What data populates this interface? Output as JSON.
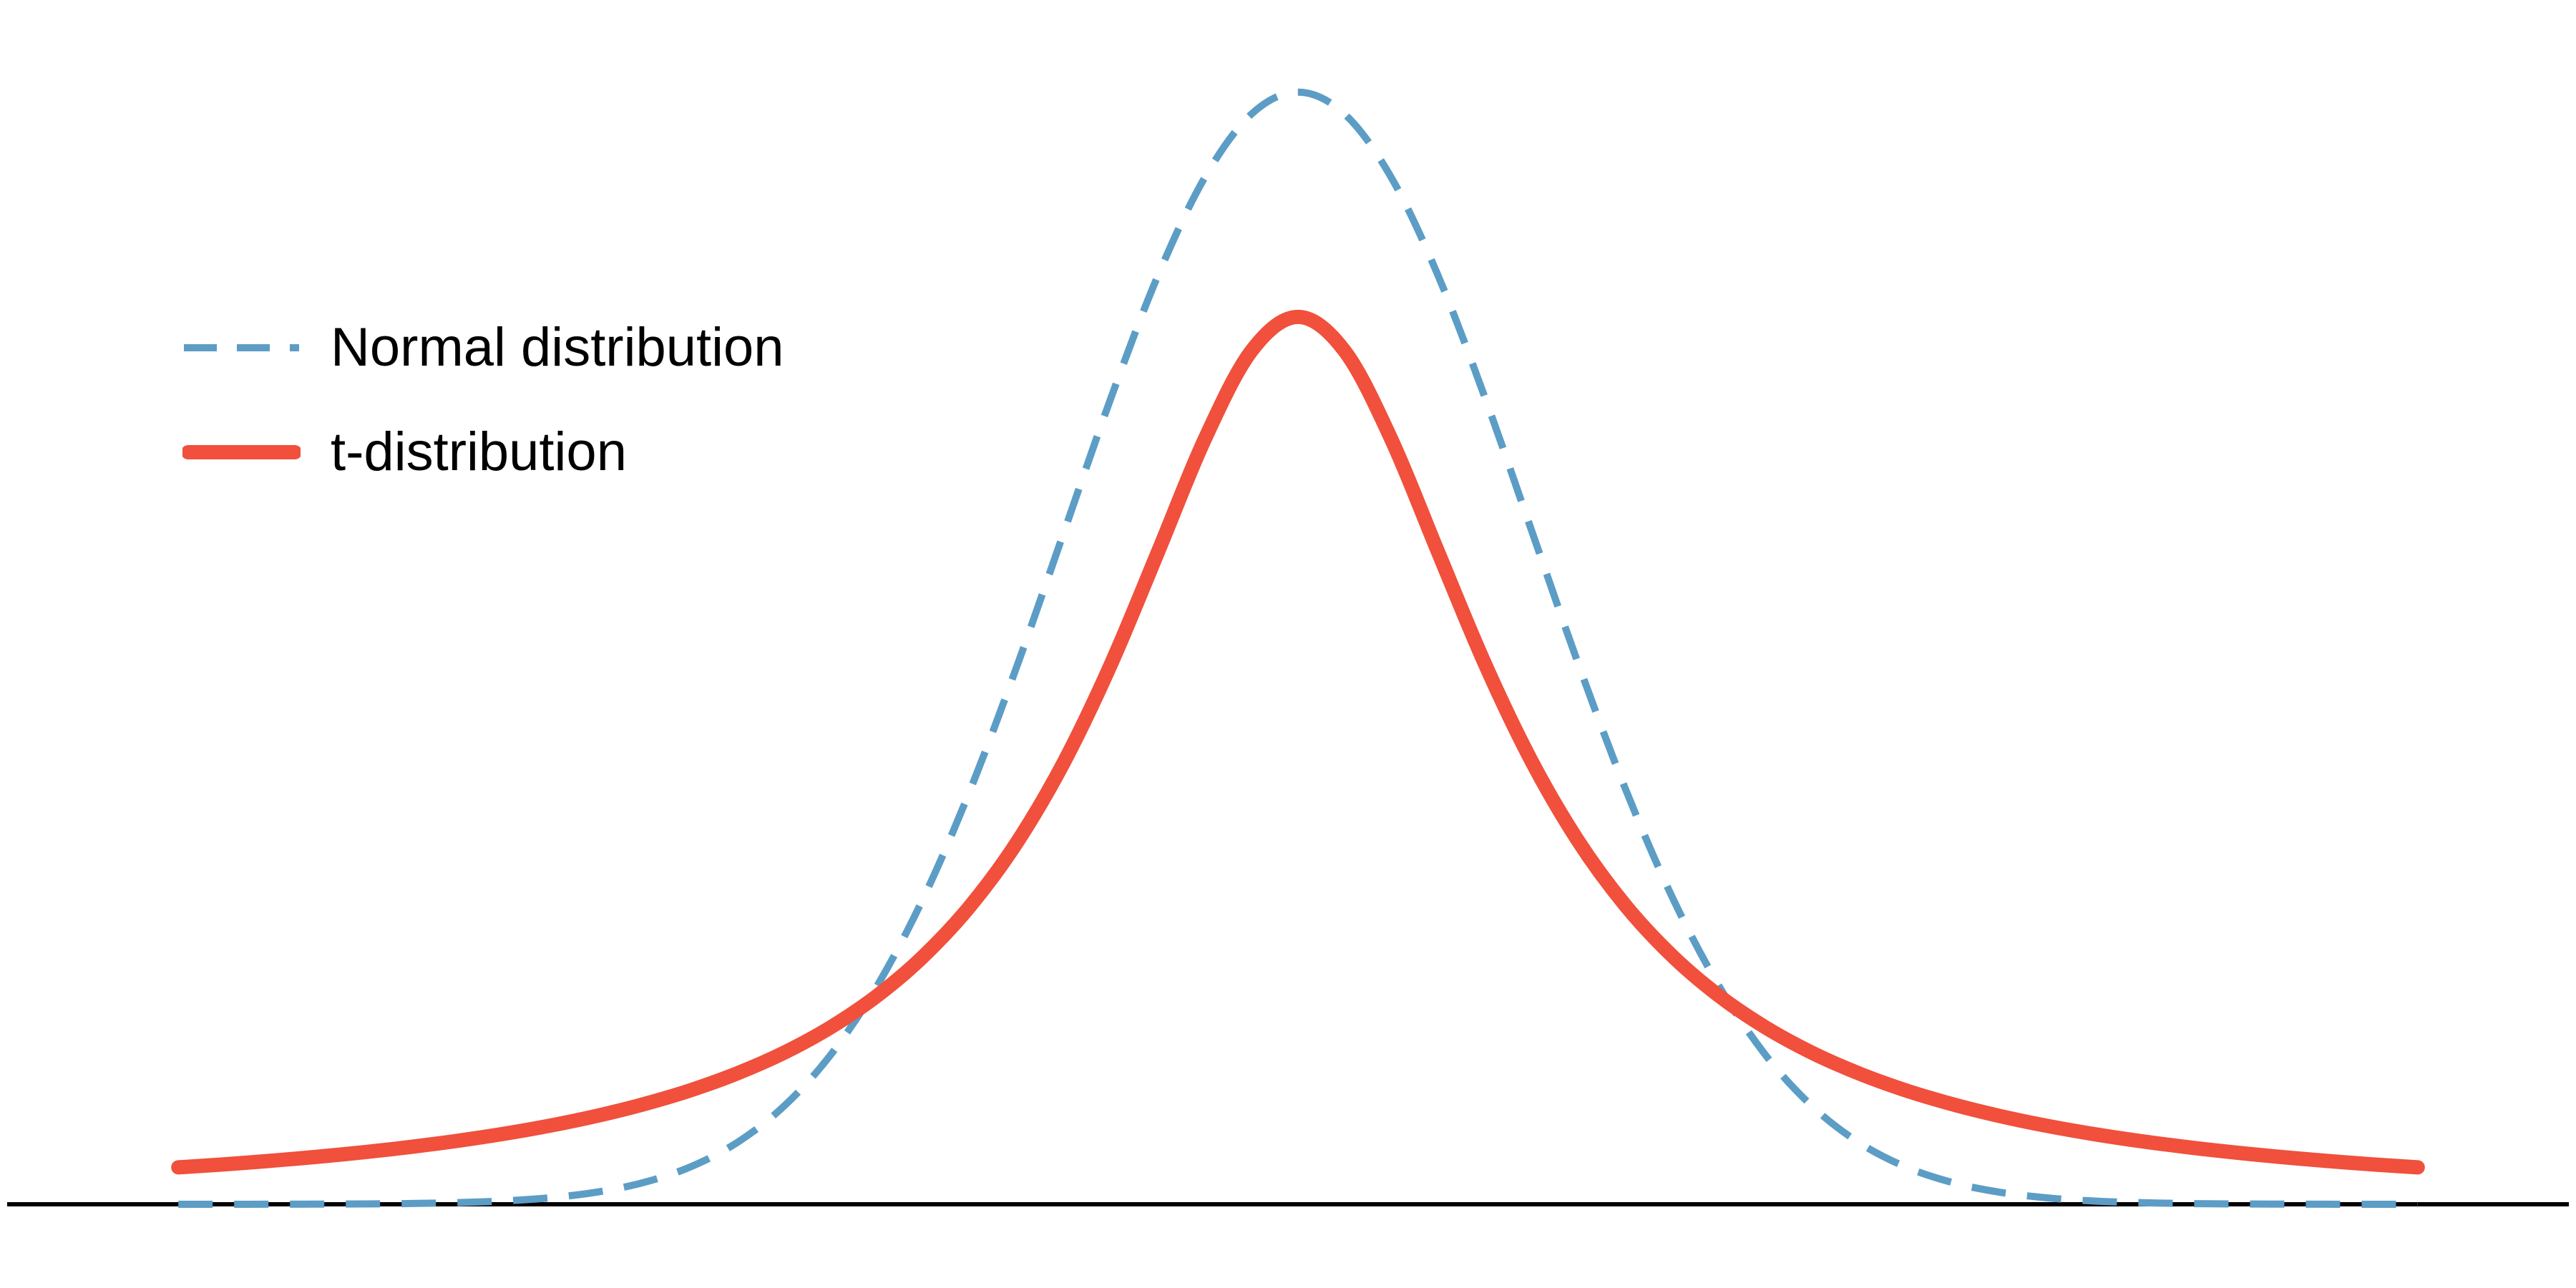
{
  "page": {
    "background": "#ffffff"
  },
  "chart_data": {
    "type": "line",
    "title": "",
    "xlabel": "",
    "ylabel": "",
    "grid": false,
    "axes": {
      "x_axis_line_visible": true,
      "x_axis_color": "#000000",
      "x_tick_labels": [],
      "y_axis_visible": false
    },
    "x_min": -4.8,
    "x_max": 4.8,
    "x_step": 0.2,
    "y_range": [
      0,
      0.44
    ],
    "legend_position": "top-left",
    "series": [
      {
        "name": "Normal distribution",
        "color": "#5C9DC6",
        "line_style": "dashed",
        "peak_value": 0.39894,
        "values": [
          4e-06,
          1e-05,
          2e-05,
          6e-05,
          0.00013,
          0.00029,
          0.00061,
          0.00123,
          0.00238,
          0.00443,
          0.00792,
          0.01358,
          0.02239,
          0.03547,
          0.05399,
          0.07895,
          0.11092,
          0.14973,
          0.19419,
          0.24197,
          0.28969,
          0.33322,
          0.36827,
          0.39104,
          0.39894,
          0.39104,
          0.36827,
          0.33322,
          0.28969,
          0.24197,
          0.19419,
          0.14973,
          0.11092,
          0.07895,
          0.05399,
          0.03547,
          0.02239,
          0.01358,
          0.00792,
          0.00443,
          0.00238,
          0.00123,
          0.00061,
          0.00029,
          0.00013,
          6e-05,
          2e-05,
          1e-05,
          4e-06
        ]
      },
      {
        "name": "t-distribution",
        "color": "#F0503C",
        "line_style": "solid",
        "peak_value": 0.31831,
        "values": [
          0.01324,
          0.01436,
          0.01563,
          0.01708,
          0.01872,
          0.02062,
          0.0228,
          0.02534,
          0.02832,
          0.03183,
          0.03601,
          0.04102,
          0.04709,
          0.0545,
          0.06366,
          0.07507,
          0.08942,
          0.10754,
          0.13045,
          0.15915,
          0.19409,
          0.23405,
          0.27441,
          0.30607,
          0.31831,
          0.30607,
          0.27441,
          0.23405,
          0.19409,
          0.15915,
          0.13045,
          0.10754,
          0.08942,
          0.07507,
          0.06366,
          0.0545,
          0.04709,
          0.04102,
          0.03601,
          0.03183,
          0.02832,
          0.02534,
          0.0228,
          0.02062,
          0.01872,
          0.01708,
          0.01563,
          0.01436,
          0.01324
        ]
      }
    ]
  }
}
